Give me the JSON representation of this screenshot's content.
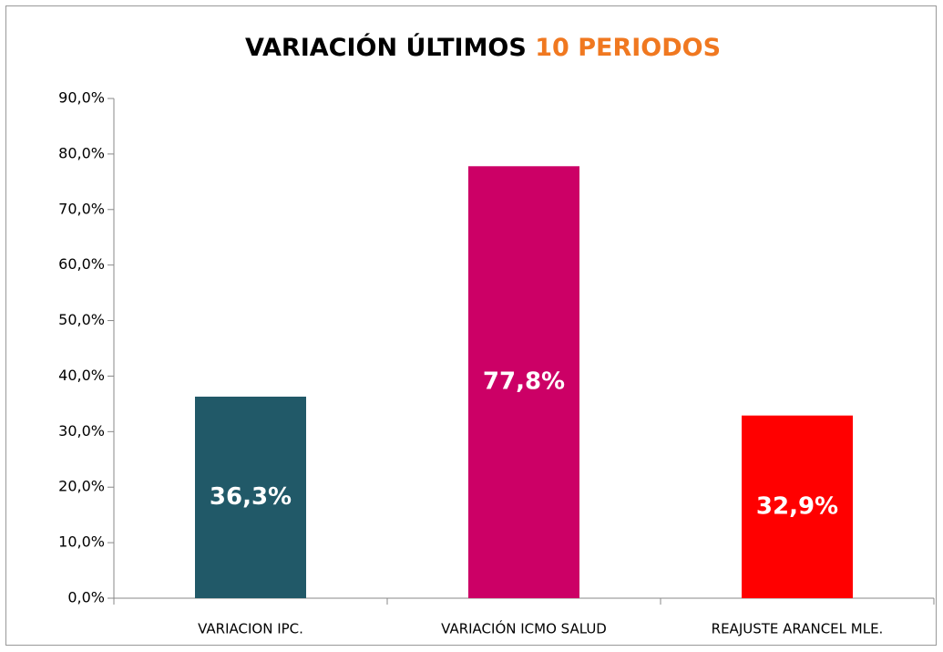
{
  "chart_data": {
    "type": "bar",
    "title": "VARIACIÓN ÚLTIMOS",
    "title_highlight": "10 PERIODOS",
    "title_color": "#000000",
    "title_highlight_color": "#f07820",
    "categories": [
      "VARIACION IPC.",
      "VARIACIÓN ICMO SALUD",
      "REAJUSTE ARANCEL MLE."
    ],
    "values": [
      36.3,
      77.8,
      32.9
    ],
    "value_labels": [
      "36,3%",
      "77,8%",
      "32,9%"
    ],
    "colors": [
      "#215968",
      "#cc0066",
      "#ff0000"
    ],
    "ylim": [
      0,
      90
    ],
    "yticks": [
      {
        "value": 0,
        "label": "0,0%"
      },
      {
        "value": 10,
        "label": "10,0%"
      },
      {
        "value": 20,
        "label": "20,0%"
      },
      {
        "value": 30,
        "label": "30,0%"
      },
      {
        "value": 40,
        "label": "40,0%"
      },
      {
        "value": 50,
        "label": "50,0%"
      },
      {
        "value": 60,
        "label": "60,0%"
      },
      {
        "value": 70,
        "label": "70,0%"
      },
      {
        "value": 80,
        "label": "80,0%"
      },
      {
        "value": 90,
        "label": "90,0%"
      }
    ],
    "grid": false
  }
}
